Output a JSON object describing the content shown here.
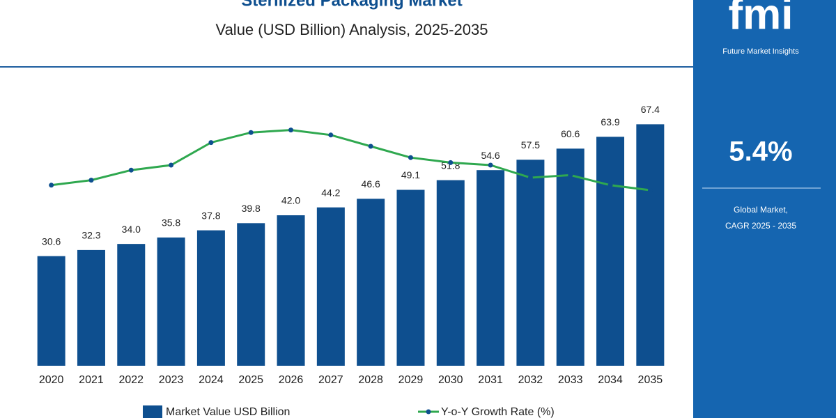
{
  "chart_data": {
    "type": "bar",
    "title": "Sterilized Packaging Market",
    "subtitle": "Value (USD Billion) Analysis, 2025-2035",
    "categories": [
      "2020",
      "2021",
      "2022",
      "2023",
      "2024",
      "2025",
      "2026",
      "2027",
      "2028",
      "2029",
      "2030",
      "2031",
      "2032",
      "2033",
      "2034",
      "2035"
    ],
    "series": [
      {
        "name": "Market Value USD Billion",
        "type": "bar",
        "color": "#0e4f8f",
        "values": [
          30.6,
          32.3,
          34.0,
          35.8,
          37.8,
          39.8,
          42.0,
          44.2,
          46.6,
          49.1,
          51.8,
          54.6,
          57.5,
          60.6,
          63.9,
          67.4
        ],
        "value_labels": [
          "30.6",
          "32.3",
          "34.0",
          "35.8",
          "37.8",
          "39.8",
          "42.0",
          "44.2",
          "46.6",
          "49.1",
          "51.8",
          "54.6",
          "57.5",
          "60.6",
          "63.9",
          "67.4"
        ]
      },
      {
        "name": "Y-o-Y Growth Rate (%)",
        "type": "line",
        "color": "#2fa84f",
        "axis": "y2",
        "values": [
          7.2,
          7.4,
          7.8,
          8.0,
          8.9,
          9.3,
          9.4,
          9.2,
          8.75,
          8.3,
          8.1,
          8.0,
          7.5,
          7.6,
          7.2,
          7.0
        ]
      }
    ],
    "ylim": [
      0,
      70
    ],
    "y2lim": [
      0,
      10
    ],
    "grid": false
  },
  "sidebar": {
    "logo": "fmi",
    "brand": "Future Market Insights",
    "cagr": "5.4%",
    "caption_1": "Global Market,",
    "caption_2": "CAGR 2025 - 2035"
  }
}
